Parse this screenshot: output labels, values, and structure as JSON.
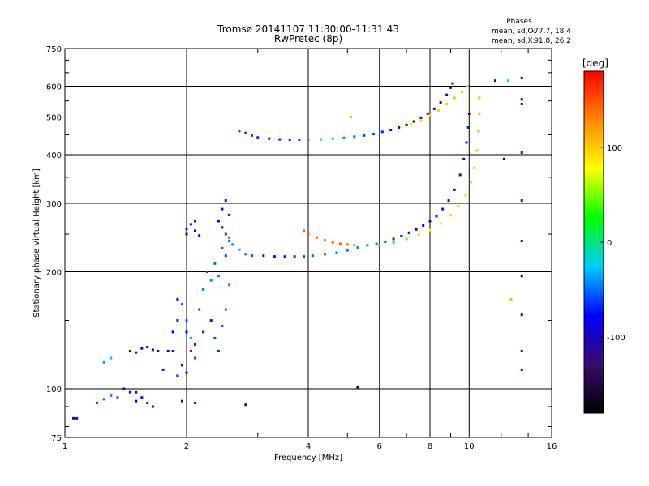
{
  "chart_data": {
    "type": "scatter",
    "title": "Tromsø 20141107 11:30:00-11:31:43",
    "subtitle": "RwPretec (8p)",
    "xlabel": "Frequency [MHz]",
    "ylabel": "Stationary phase Virtual Height [km]",
    "x_scale": "log",
    "y_scale": "log",
    "xlim": [
      1,
      16
    ],
    "ylim": [
      75,
      750
    ],
    "x_ticks": [
      1,
      2,
      4,
      6,
      8,
      10,
      16
    ],
    "y_ticks": [
      75,
      100,
      200,
      300,
      400,
      500,
      600,
      750
    ],
    "grid": true,
    "stats": {
      "heading": "Phases",
      "o_label": "mean, sd,O:",
      "o_values": "-77.7, 18.4",
      "x_label": "mean, sd,X:",
      "x_values": "91.8, 26.2"
    },
    "colorbar": {
      "label": "[deg]",
      "ticks": [
        100,
        0,
        -100
      ],
      "range": [
        -180,
        180
      ],
      "colors": [
        "#000000",
        "#3a0a6e",
        "#0000ff",
        "#00ccff",
        "#00ff00",
        "#ffff00",
        "#ff8800",
        "#ff0000"
      ],
      "placement": "right"
    },
    "series": [
      {
        "points": [
          [
            1.05,
            84,
            -100
          ],
          [
            1.07,
            84,
            -95
          ],
          [
            1.2,
            92,
            -60
          ],
          [
            1.25,
            94,
            -55
          ],
          [
            1.3,
            96,
            -40
          ],
          [
            1.35,
            95,
            -50
          ],
          [
            1.4,
            100,
            -100
          ],
          [
            1.45,
            98,
            -90
          ],
          [
            1.5,
            98,
            -100
          ],
          [
            1.55,
            95,
            -95
          ],
          [
            1.6,
            92,
            -100
          ],
          [
            1.65,
            90,
            -110
          ],
          [
            1.5,
            93,
            -80
          ],
          [
            1.25,
            117,
            -40
          ],
          [
            1.3,
            120,
            -30
          ],
          [
            1.45,
            125,
            -120
          ],
          [
            1.5,
            124,
            -110
          ],
          [
            1.55,
            127,
            -100
          ],
          [
            1.6,
            128,
            -95
          ],
          [
            1.65,
            126,
            -105
          ],
          [
            1.7,
            125,
            -90
          ]
        ]
      },
      {
        "points": [
          [
            1.75,
            112,
            -100
          ],
          [
            1.8,
            125,
            -90
          ],
          [
            1.85,
            140,
            -80
          ],
          [
            1.9,
            150,
            -70
          ],
          [
            1.95,
            165,
            -60
          ],
          [
            2.0,
            150,
            -50
          ],
          [
            2.05,
            135,
            -40
          ],
          [
            2.1,
            120,
            -60
          ],
          [
            2.0,
            110,
            -80
          ],
          [
            1.95,
            115,
            -90
          ],
          [
            2.05,
            125,
            -70
          ],
          [
            1.9,
            170,
            -80
          ],
          [
            2.15,
            160,
            -60
          ],
          [
            2.2,
            180,
            -50
          ],
          [
            2.3,
            190,
            -40
          ],
          [
            2.25,
            200,
            -60
          ],
          [
            2.35,
            210,
            -50
          ],
          [
            2.4,
            195,
            -40
          ],
          [
            2.45,
            230,
            -55
          ],
          [
            2.5,
            220,
            -60
          ],
          [
            2.55,
            240,
            -50
          ],
          [
            2.3,
            150,
            -70
          ],
          [
            2.35,
            135,
            -60
          ],
          [
            2.4,
            125,
            -65
          ],
          [
            2.45,
            145,
            -55
          ],
          [
            2.5,
            160,
            -50
          ],
          [
            2.55,
            185,
            -45
          ],
          [
            2.2,
            140,
            -70
          ],
          [
            2.1,
            130,
            -75
          ],
          [
            2.0,
            140,
            -80
          ],
          [
            1.85,
            125,
            -85
          ],
          [
            1.9,
            108,
            -90
          ]
        ]
      },
      {
        "points": [
          [
            2.0,
            258,
            -90
          ],
          [
            2.05,
            265,
            -85
          ],
          [
            2.1,
            255,
            -80
          ],
          [
            2.15,
            248,
            -90
          ],
          [
            2.1,
            270,
            -85
          ],
          [
            2.0,
            250,
            -95
          ],
          [
            2.4,
            270,
            -85
          ],
          [
            2.45,
            290,
            -80
          ],
          [
            2.5,
            305,
            -75
          ],
          [
            2.55,
            280,
            -80
          ],
          [
            2.45,
            260,
            -70
          ],
          [
            2.5,
            250,
            -60
          ],
          [
            2.55,
            245,
            -50
          ],
          [
            2.6,
            235,
            -45
          ],
          [
            2.7,
            228,
            -40
          ],
          [
            2.8,
            222,
            -50
          ]
        ]
      },
      {
        "points": [
          [
            2.9,
            220,
            -60
          ],
          [
            3.1,
            220,
            -70
          ],
          [
            3.3,
            219,
            -75
          ],
          [
            3.5,
            219,
            -70
          ],
          [
            3.7,
            219,
            -65
          ],
          [
            3.9,
            219,
            -60
          ],
          [
            4.1,
            220,
            -55
          ],
          [
            4.4,
            222,
            -50
          ],
          [
            4.7,
            224,
            -45
          ],
          [
            5.0,
            227,
            -45
          ],
          [
            5.3,
            231,
            -45
          ],
          [
            5.6,
            234,
            -40
          ],
          [
            5.9,
            236,
            -50
          ],
          [
            6.2,
            239,
            -60
          ],
          [
            6.5,
            243,
            -70
          ],
          [
            6.8,
            247,
            -80
          ],
          [
            7.1,
            252,
            -85
          ],
          [
            7.4,
            257,
            -90
          ],
          [
            7.7,
            263,
            -95
          ],
          [
            8.0,
            270,
            -100
          ],
          [
            8.3,
            278,
            -105
          ],
          [
            8.6,
            290,
            -105
          ],
          [
            8.9,
            305,
            -105
          ],
          [
            9.2,
            325,
            -110
          ],
          [
            9.5,
            355,
            -110
          ],
          [
            9.7,
            390,
            -110
          ],
          [
            9.85,
            430,
            -110
          ],
          [
            9.95,
            470,
            -115
          ],
          [
            10.0,
            510,
            -120
          ]
        ]
      },
      {
        "points": [
          [
            3.9,
            255,
            150
          ],
          [
            4.0,
            250,
            150
          ],
          [
            4.2,
            245,
            145
          ],
          [
            4.4,
            241,
            140
          ],
          [
            4.6,
            238,
            140
          ],
          [
            4.8,
            236,
            145
          ],
          [
            5.0,
            235,
            140
          ],
          [
            5.2,
            234,
            130
          ]
        ]
      },
      {
        "points": [
          [
            6.0,
            234,
            10
          ],
          [
            6.5,
            238,
            20
          ],
          [
            7.0,
            243,
            40
          ],
          [
            7.5,
            249,
            60
          ],
          [
            8.0,
            256,
            80
          ],
          [
            8.5,
            266,
            90
          ],
          [
            9.0,
            280,
            95
          ],
          [
            9.4,
            295,
            95
          ],
          [
            9.8,
            315,
            100
          ],
          [
            10.1,
            340,
            100
          ],
          [
            10.3,
            370,
            105
          ],
          [
            10.45,
            410,
            105
          ],
          [
            10.55,
            460,
            110
          ],
          [
            10.6,
            510,
            110
          ],
          [
            10.6,
            560,
            110
          ]
        ]
      },
      {
        "points": [
          [
            2.7,
            460,
            -60
          ],
          [
            2.8,
            455,
            -60
          ],
          [
            2.9,
            448,
            -60
          ],
          [
            3.0,
            443,
            -65
          ],
          [
            3.2,
            440,
            -70
          ],
          [
            3.4,
            438,
            -70
          ],
          [
            3.6,
            437,
            -65
          ],
          [
            3.8,
            437,
            -60
          ],
          [
            4.0,
            437,
            -40
          ],
          [
            4.3,
            438,
            -20
          ],
          [
            4.6,
            440,
            -30
          ],
          [
            4.9,
            442,
            -40
          ],
          [
            5.2,
            445,
            -50
          ],
          [
            5.5,
            448,
            -55
          ],
          [
            5.8,
            452,
            -60
          ],
          [
            6.1,
            458,
            -70
          ],
          [
            6.4,
            463,
            -80
          ],
          [
            6.7,
            470,
            -85
          ],
          [
            7.0,
            477,
            -90
          ],
          [
            7.3,
            487,
            -95
          ],
          [
            7.6,
            498,
            -100
          ],
          [
            7.9,
            510,
            -105
          ],
          [
            8.2,
            525,
            -110
          ],
          [
            8.5,
            545,
            -110
          ],
          [
            8.8,
            570,
            -115
          ],
          [
            9.0,
            595,
            -120
          ],
          [
            9.1,
            610,
            -120
          ]
        ]
      },
      {
        "points": [
          [
            6.8,
            472,
            80
          ],
          [
            7.2,
            480,
            85
          ],
          [
            7.6,
            490,
            90
          ],
          [
            8.0,
            505,
            95
          ],
          [
            8.4,
            520,
            100
          ],
          [
            8.8,
            540,
            100
          ],
          [
            9.2,
            560,
            105
          ],
          [
            9.6,
            580,
            105
          ],
          [
            9.9,
            600,
            110
          ]
        ]
      },
      {
        "points": [
          [
            13.5,
            630,
            -130
          ],
          [
            13.5,
            555,
            -150
          ],
          [
            13.5,
            540,
            -140
          ],
          [
            13.5,
            405,
            -130
          ],
          [
            13.5,
            305,
            -120
          ],
          [
            13.5,
            240,
            -140
          ],
          [
            13.5,
            195,
            -150
          ],
          [
            13.5,
            155,
            -140
          ],
          [
            13.5,
            125,
            -130
          ],
          [
            13.5,
            112,
            -120
          ],
          [
            12.7,
            170,
            110
          ],
          [
            12.2,
            390,
            -150
          ],
          [
            12.5,
            620,
            0
          ],
          [
            11.6,
            620,
            -120
          ],
          [
            5.3,
            101,
            -170
          ],
          [
            2.8,
            91,
            -150
          ],
          [
            2.1,
            92,
            -130
          ],
          [
            1.95,
            93,
            -140
          ],
          [
            5.1,
            500,
            110
          ]
        ]
      }
    ]
  }
}
